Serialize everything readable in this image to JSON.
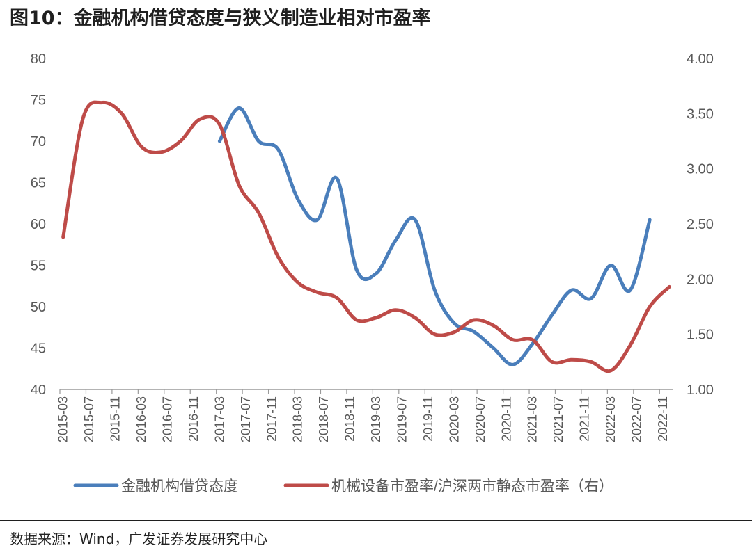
{
  "title": {
    "prefix": "图10：",
    "text": "金融机构借贷态度与狭义制造业相对市盈率"
  },
  "source": "数据来源：Wind，广发证券发展研究中心",
  "colors": {
    "series1": "#4a7ebb",
    "series2": "#be4b48",
    "axis": "#9a9a9a",
    "text": "#595959"
  },
  "chart_data": {
    "type": "line",
    "title": "金融机构借贷态度与狭义制造业相对市盈率",
    "x_tick_labels": [
      "2015-03",
      "2015-07",
      "2015-11",
      "2016-03",
      "2016-07",
      "2016-11",
      "2017-03",
      "2017-07",
      "2017-11",
      "2018-03",
      "2018-07",
      "2018-11",
      "2019-03",
      "2019-07",
      "2019-11",
      "2020-03",
      "2020-07",
      "2020-11",
      "2021-03",
      "2021-07",
      "2021-11",
      "2022-03",
      "2022-07",
      "2022-11"
    ],
    "x_start": "2015-03",
    "x_end": "2022-12",
    "y_left": {
      "min": 40,
      "max": 80,
      "step": 5,
      "ticks": [
        "40",
        "45",
        "50",
        "55",
        "60",
        "65",
        "70",
        "75",
        "80"
      ]
    },
    "y_right": {
      "min": 1.0,
      "max": 4.0,
      "step": 0.5,
      "ticks": [
        "1.00",
        "1.50",
        "2.00",
        "2.50",
        "3.00",
        "3.50",
        "4.00"
      ]
    },
    "grid": false,
    "legend_position": "bottom",
    "series": [
      {
        "name": "金融机构借贷态度",
        "axis": "left",
        "points": [
          [
            "2017-03",
            70.0
          ],
          [
            "2017-06",
            74.0
          ],
          [
            "2017-09",
            70.0
          ],
          [
            "2017-12",
            69.0
          ],
          [
            "2018-03",
            63.0
          ],
          [
            "2018-06",
            60.5
          ],
          [
            "2018-09",
            65.5
          ],
          [
            "2018-12",
            54.5
          ],
          [
            "2019-03",
            54.0
          ],
          [
            "2019-06",
            58.0
          ],
          [
            "2019-09",
            60.5
          ],
          [
            "2019-12",
            52.0
          ],
          [
            "2020-03",
            48.0
          ],
          [
            "2020-06",
            47.0
          ],
          [
            "2020-09",
            45.0
          ],
          [
            "2020-12",
            43.0
          ],
          [
            "2021-03",
            45.5
          ],
          [
            "2021-06",
            49.0
          ],
          [
            "2021-09",
            52.0
          ],
          [
            "2021-12",
            51.0
          ],
          [
            "2022-03",
            55.0
          ],
          [
            "2022-06",
            52.0
          ],
          [
            "2022-09",
            60.5
          ]
        ]
      },
      {
        "name": "机械设备市盈率/沪深两市静态市盈率（右）",
        "axis": "right",
        "points": [
          [
            "2015-03",
            2.38
          ],
          [
            "2015-06",
            3.45
          ],
          [
            "2015-09",
            3.6
          ],
          [
            "2015-12",
            3.5
          ],
          [
            "2016-03",
            3.2
          ],
          [
            "2016-06",
            3.15
          ],
          [
            "2016-09",
            3.25
          ],
          [
            "2016-12",
            3.45
          ],
          [
            "2017-03",
            3.4
          ],
          [
            "2017-06",
            2.85
          ],
          [
            "2017-09",
            2.6
          ],
          [
            "2017-12",
            2.2
          ],
          [
            "2018-03",
            1.97
          ],
          [
            "2018-06",
            1.88
          ],
          [
            "2018-09",
            1.83
          ],
          [
            "2018-12",
            1.63
          ],
          [
            "2019-03",
            1.65
          ],
          [
            "2019-06",
            1.72
          ],
          [
            "2019-09",
            1.65
          ],
          [
            "2019-12",
            1.5
          ],
          [
            "2020-03",
            1.52
          ],
          [
            "2020-06",
            1.63
          ],
          [
            "2020-09",
            1.58
          ],
          [
            "2020-12",
            1.45
          ],
          [
            "2021-03",
            1.45
          ],
          [
            "2021-06",
            1.25
          ],
          [
            "2021-09",
            1.27
          ],
          [
            "2021-12",
            1.25
          ],
          [
            "2022-03",
            1.17
          ],
          [
            "2022-06",
            1.4
          ],
          [
            "2022-09",
            1.75
          ],
          [
            "2022-12",
            1.93
          ]
        ]
      }
    ]
  }
}
